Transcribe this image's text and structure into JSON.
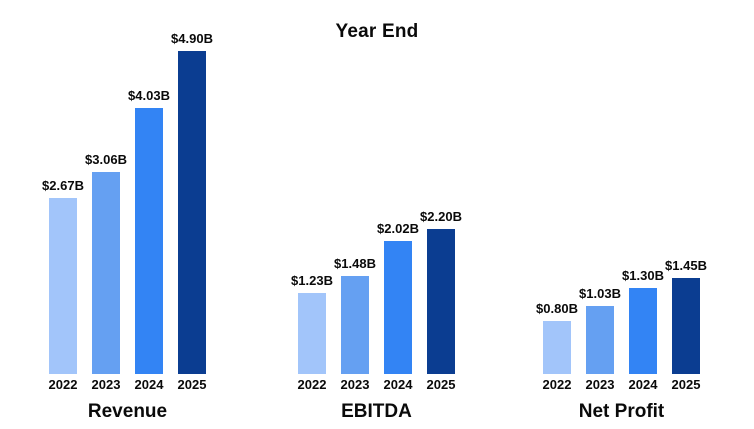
{
  "title": "Year End",
  "chart_data": {
    "type": "bar",
    "title": "Year End",
    "categories": [
      "Revenue",
      "EBITDA",
      "Net Profit"
    ],
    "series": [
      {
        "name": "2022",
        "color": "#A2C5FA",
        "values": [
          2.67,
          1.23,
          0.8
        ]
      },
      {
        "name": "2023",
        "color": "#65A0F2",
        "values": [
          3.06,
          1.48,
          1.03
        ]
      },
      {
        "name": "2024",
        "color": "#3384F4",
        "values": [
          4.03,
          2.02,
          1.3
        ]
      },
      {
        "name": "2025",
        "color": "#0B3D91",
        "values": [
          4.9,
          2.2,
          1.45
        ]
      }
    ],
    "value_labels": [
      [
        "$2.67B",
        "$3.06B",
        "$4.03B",
        "$4.90B"
      ],
      [
        "$1.23B",
        "$1.48B",
        "$2.02B",
        "$2.20B"
      ],
      [
        "$0.80B",
        "$1.03B",
        "$1.30B",
        "$1.45B"
      ]
    ],
    "unit": "USD billions",
    "ylim": [
      0,
      5
    ],
    "grid": false,
    "legend": false,
    "value_label_position": "above-bar",
    "background_color": "#FFFFFF",
    "text_color": "#0A0A0A"
  }
}
